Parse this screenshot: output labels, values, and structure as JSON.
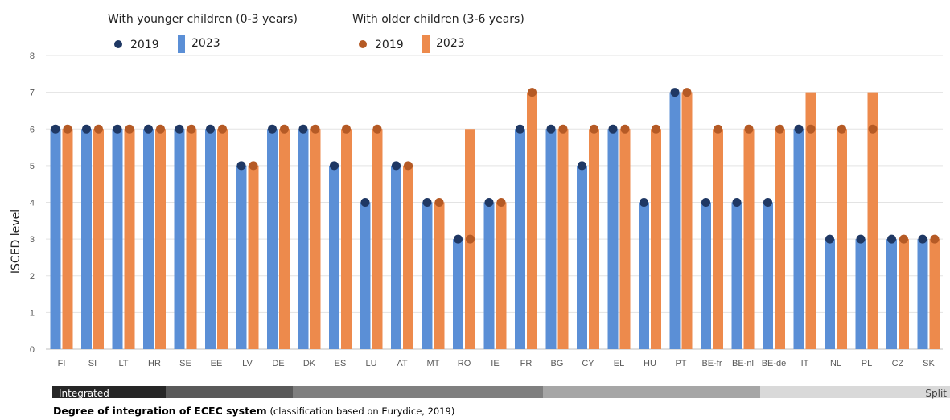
{
  "chart_data": {
    "type": "bar",
    "ylabel": "ISCED level",
    "ylim": [
      0,
      8
    ],
    "yticks": [
      0,
      1,
      2,
      3,
      4,
      5,
      6,
      7,
      8
    ],
    "grid": true,
    "legend": {
      "placement": "top-left",
      "groups": [
        {
          "title": "With younger children (0-3 years)",
          "items": [
            "2019",
            "2023"
          ]
        },
        {
          "title": "With older children (3-6 years)",
          "items": [
            "2019",
            "2023"
          ]
        }
      ]
    },
    "categories": [
      "FI",
      "SI",
      "LT",
      "HR",
      "SE",
      "EE",
      "LV",
      "DE",
      "DK",
      "ES",
      "LU",
      "AT",
      "MT",
      "RO",
      "IE",
      "FR",
      "BG",
      "CY",
      "EL",
      "HU",
      "PT",
      "BE-fr",
      "BE-nl",
      "BE-de",
      "IT",
      "NL",
      "PL",
      "CZ",
      "SK"
    ],
    "series": [
      {
        "name": "2019",
        "group": "With younger children (0-3 years)",
        "mark": "dot",
        "color": "#1f3864",
        "values": [
          6,
          6,
          6,
          6,
          6,
          6,
          5,
          6,
          6,
          5,
          4,
          5,
          4,
          3,
          4,
          6,
          6,
          5,
          6,
          4,
          7,
          4,
          4,
          4,
          6,
          3,
          3,
          3,
          3
        ]
      },
      {
        "name": "2023",
        "group": "With younger children (0-3 years)",
        "mark": "bar",
        "color": "#5b8fd6",
        "values": [
          6,
          6,
          6,
          6,
          6,
          6,
          5,
          6,
          6,
          5,
          4,
          5,
          4,
          3,
          4,
          6,
          6,
          5,
          6,
          4,
          7,
          4,
          4,
          4,
          6,
          3,
          3,
          3,
          3
        ]
      },
      {
        "name": "2019",
        "group": "With older children (3-6 years)",
        "mark": "dot",
        "color": "#b55a25",
        "values": [
          6,
          6,
          6,
          6,
          6,
          6,
          5,
          6,
          6,
          6,
          6,
          5,
          4,
          3,
          4,
          7,
          6,
          6,
          6,
          6,
          7,
          6,
          6,
          6,
          6,
          6,
          6,
          3,
          3
        ]
      },
      {
        "name": "2023",
        "group": "With older children (3-6 years)",
        "mark": "bar",
        "color": "#ed8a4c",
        "values": [
          6,
          6,
          6,
          6,
          6,
          6,
          5,
          6,
          6,
          6,
          6,
          5,
          4,
          6,
          4,
          7,
          6,
          6,
          6,
          6,
          7,
          6,
          6,
          6,
          7,
          6,
          7,
          3,
          3
        ]
      }
    ],
    "integration_scale": {
      "label_start": "Integrated",
      "label_end": "Split",
      "segment_colors": [
        "#262626",
        "#595959",
        "#7f7f7f",
        "#a6a6a6",
        "#d9d9d9"
      ]
    }
  },
  "caption": {
    "bold": "Degree of integration of ECEC system",
    "normal": "(classification based on Eurydice, 2019)"
  }
}
